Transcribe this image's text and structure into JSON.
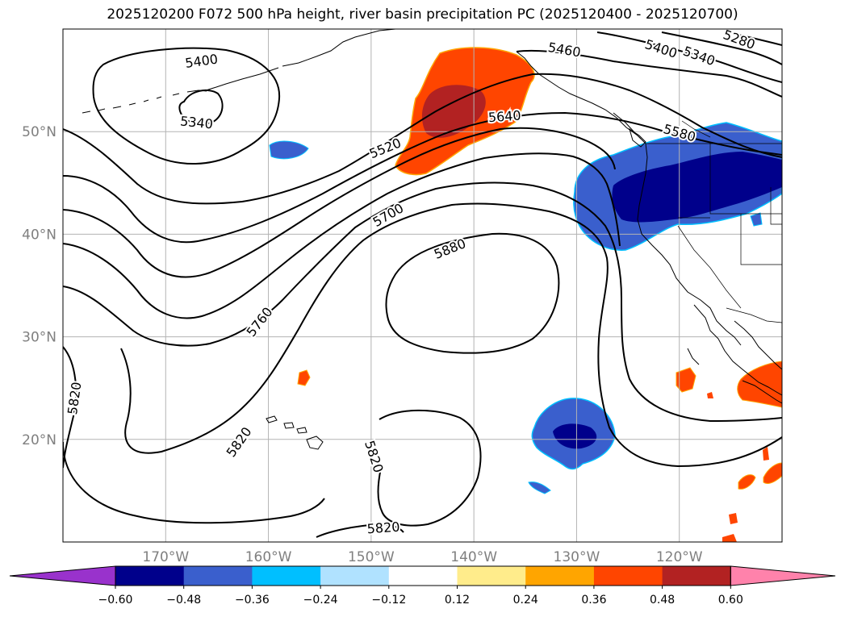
{
  "title": "2025120200 F072 500 hPa height, river basin precipitation PC (2025120400 - 2025120700)",
  "map": {
    "projection": "PlateCarree",
    "lon_range": [
      -180,
      -110
    ],
    "lat_range": [
      10,
      60
    ],
    "lat_ticks": [
      {
        "value": 50,
        "label": "50°N"
      },
      {
        "value": 40,
        "label": "40°N"
      },
      {
        "value": 30,
        "label": "30°N"
      },
      {
        "value": 20,
        "label": "20°N"
      }
    ],
    "lon_ticks": [
      {
        "value": -170,
        "label": "170°W"
      },
      {
        "value": -160,
        "label": "160°W"
      },
      {
        "value": -150,
        "label": "150°W"
      },
      {
        "value": -140,
        "label": "140°W"
      },
      {
        "value": -130,
        "label": "130°W"
      },
      {
        "value": -120,
        "label": "120°W"
      }
    ],
    "contour_labels": [
      {
        "text": "5400",
        "lon": -166.5,
        "lat": 56.8,
        "angle": -8
      },
      {
        "text": "5340",
        "lon": -167,
        "lat": 50.8,
        "angle": 6
      },
      {
        "text": "5520",
        "lon": -148.6,
        "lat": 48.3,
        "angle": -22
      },
      {
        "text": "5640",
        "lon": -137,
        "lat": 51.4,
        "angle": -4
      },
      {
        "text": "5460",
        "lon": -131.2,
        "lat": 57.9,
        "angle": 10
      },
      {
        "text": "5400",
        "lon": -121.8,
        "lat": 58,
        "angle": 18
      },
      {
        "text": "5340",
        "lon": -118.1,
        "lat": 57.3,
        "angle": 20
      },
      {
        "text": "5280",
        "lon": -114.2,
        "lat": 58.9,
        "angle": 20
      },
      {
        "text": "5580",
        "lon": -120,
        "lat": 49.8,
        "angle": 16
      },
      {
        "text": "5700",
        "lon": -148.3,
        "lat": 41.8,
        "angle": -30
      },
      {
        "text": "5880",
        "lon": -142.3,
        "lat": 38.5,
        "angle": -22
      },
      {
        "text": "5760",
        "lon": -160.8,
        "lat": 31.4,
        "angle": -52
      },
      {
        "text": "5820",
        "lon": -178.8,
        "lat": 24,
        "angle": -82
      },
      {
        "text": "5820",
        "lon": -162.8,
        "lat": 19.7,
        "angle": -55
      },
      {
        "text": "5820",
        "lon": -149.8,
        "lat": 18.3,
        "angle": 72
      },
      {
        "text": "5820",
        "lon": -148.8,
        "lat": 11.3,
        "angle": -4
      }
    ]
  },
  "colorbar": {
    "ticks": [
      "−0.60",
      "−0.48",
      "−0.36",
      "−0.24",
      "−0.12",
      "0.12",
      "0.24",
      "0.36",
      "0.48",
      "0.60"
    ],
    "colors": [
      "#9932cc",
      "#00008b",
      "#3a5fcd",
      "#00bfff",
      "#b0e2ff",
      "#ffffff",
      "#ffec8b",
      "#ffa500",
      "#ff4500",
      "#b22222",
      "#ff82ab"
    ]
  }
}
